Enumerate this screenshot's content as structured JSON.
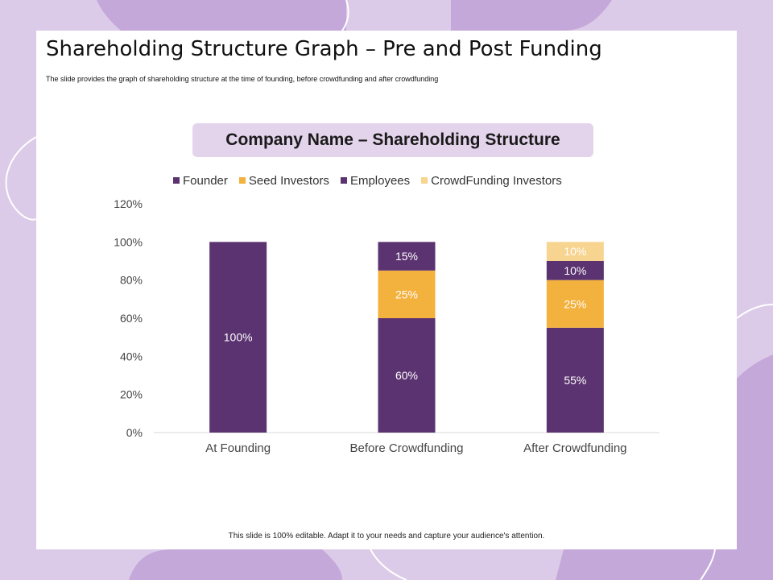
{
  "slide": {
    "title": "Shareholding Structure Graph – Pre and Post Funding",
    "subtitle": "The slide provides the graph of shareholding  structure at the time  of founding,  before crowdfunding and after crowdfunding",
    "footer": "This slide is 100% editable.  Adapt it to your needs and capture your audience's attention."
  },
  "colors": {
    "background": "#dccbe8",
    "background_shape": "#c4a8da",
    "title_box": "#e3d4ec",
    "founder": "#5b3370",
    "seed_investors": "#f3b13d",
    "employees": "#5b3370",
    "crowdfunding_investors": "#f7d48f"
  },
  "chart_data": {
    "type": "bar",
    "stacked": true,
    "title": "Company Name – Shareholding Structure",
    "categories": [
      "At Founding",
      "Before Crowdfunding",
      "After Crowdfunding"
    ],
    "series": [
      {
        "name": "Founder",
        "color": "#5b3370",
        "values": [
          100,
          60,
          55
        ]
      },
      {
        "name": "Seed Investors",
        "color": "#f3b13d",
        "values": [
          0,
          25,
          25
        ]
      },
      {
        "name": "Employees",
        "color": "#5b3370",
        "values": [
          0,
          15,
          10
        ]
      },
      {
        "name": "CrowdFunding Investors",
        "color": "#f7d48f",
        "values": [
          0,
          0,
          10
        ]
      }
    ],
    "data_labels": [
      [
        "100%",
        "60%",
        "55%"
      ],
      [
        "",
        "25%",
        "25%"
      ],
      [
        "",
        "15%",
        "10%"
      ],
      [
        "",
        "",
        "10%"
      ]
    ],
    "ylim": [
      0,
      120
    ],
    "yticks": [
      0,
      20,
      40,
      60,
      80,
      100,
      120
    ],
    "ytick_labels": [
      "0%",
      "20%",
      "40%",
      "60%",
      "80%",
      "100%",
      "120%"
    ],
    "legend_position": "top",
    "grid": false
  }
}
